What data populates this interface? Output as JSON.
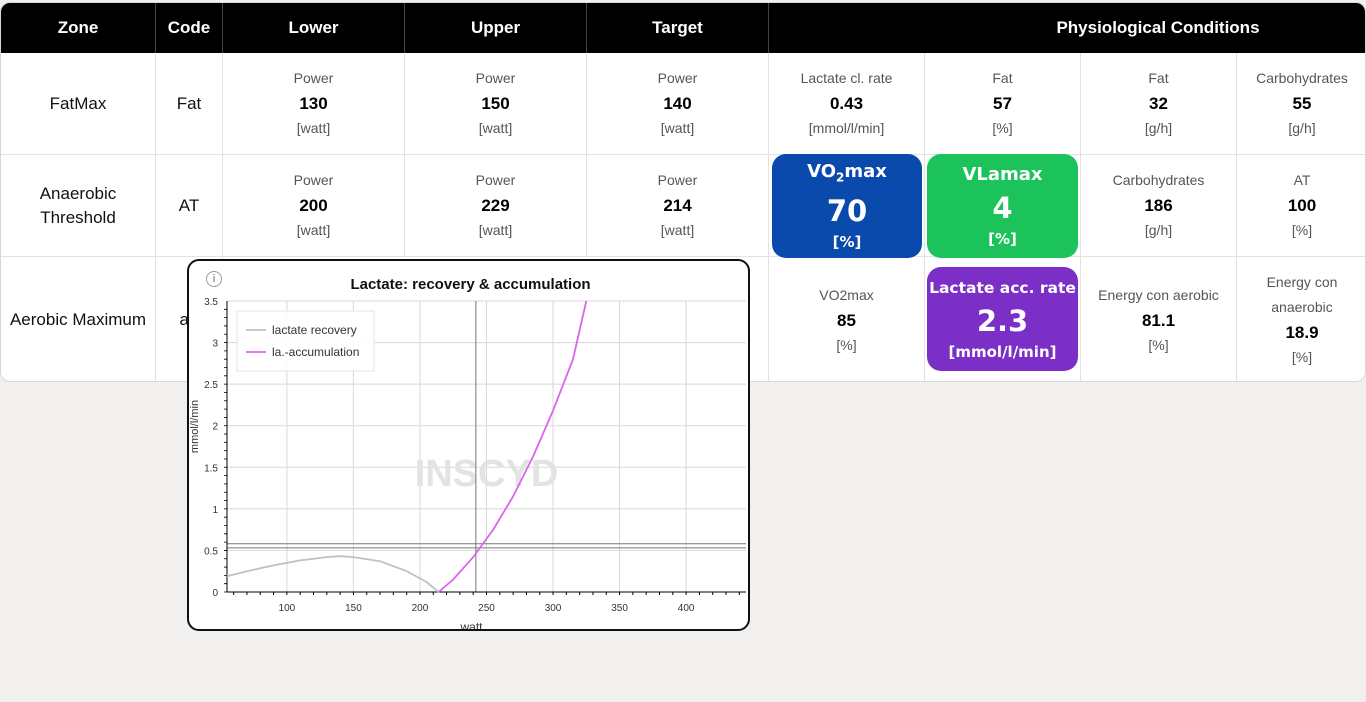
{
  "headers": {
    "zone": "Zone",
    "code": "Code",
    "lower": "Lower",
    "upper": "Upper",
    "target": "Target",
    "conditions": "Physiological Conditions"
  },
  "rows": [
    {
      "zone": "FatMax",
      "code": "Fat",
      "lower": {
        "label": "Power",
        "value": "130",
        "unit": "[watt]"
      },
      "upper": {
        "label": "Power",
        "value": "150",
        "unit": "[watt]"
      },
      "target": {
        "label": "Power",
        "value": "140",
        "unit": "[watt]"
      },
      "c1": {
        "label": "Lactate cl. rate",
        "value": "0.43",
        "unit": "[mmol/l/min]"
      },
      "c2": {
        "label": "Fat",
        "value": "57",
        "unit": "[%]"
      },
      "c3": {
        "label": "Fat",
        "value": "32",
        "unit": "[g/h]"
      },
      "c4": {
        "label": "Carbohydrates",
        "value": "55",
        "unit": "[g/h]"
      }
    },
    {
      "zone_line1": "Anaerobic",
      "zone_line2": "Threshold",
      "code": "AT",
      "lower": {
        "label": "Power",
        "value": "200",
        "unit": "[watt]"
      },
      "upper": {
        "label": "Power",
        "value": "229",
        "unit": "[watt]"
      },
      "target": {
        "label": "Power",
        "value": "214",
        "unit": "[watt]"
      },
      "c1": {
        "title_main": "VO",
        "title_sub": "2",
        "title_rest": "max",
        "value": "70",
        "unit": "[%]",
        "color": "#0a4aad"
      },
      "c2": {
        "title": "VLamax",
        "value": "4",
        "unit": "[%]",
        "color": "#1cc35a"
      },
      "c3": {
        "label": "Carbohydrates",
        "value": "186",
        "unit": "[g/h]"
      },
      "c4": {
        "label": "AT",
        "value": "100",
        "unit": "[%]"
      }
    },
    {
      "zone": "Aerobic Maximum",
      "code": "ae",
      "c1": {
        "label": "VO2max",
        "value": "85",
        "unit": "[%]"
      },
      "c2": {
        "title": "Lactate acc. rate",
        "value": "2.3",
        "unit": "[mmol/l/min]",
        "color": "#7b2fc6"
      },
      "c3": {
        "label": "Energy con aerobic",
        "value": "81.1",
        "unit": "[%]"
      },
      "c4": {
        "label_line1": "Energy con",
        "label_line2": "anaerobic",
        "value": "18.9",
        "unit": "[%]"
      }
    }
  ],
  "popup": {
    "info_glyph": "i",
    "icon": "info-icon"
  },
  "chart_data": {
    "type": "line",
    "title": "Lactate: recovery & accumulation",
    "xlabel": "watt",
    "ylabel": "mmol/l/min",
    "xlim": [
      55,
      445
    ],
    "ylim": [
      0,
      3.5
    ],
    "xticks": [
      100,
      150,
      200,
      250,
      300,
      350,
      400
    ],
    "yticks": [
      0,
      0.5,
      1,
      1.5,
      2,
      2.5,
      3,
      3.5
    ],
    "ref_vline": 242,
    "ref_hlines": [
      0.53,
      0.58
    ],
    "watermark": "INSCYD",
    "legend": "top-left",
    "series": [
      {
        "name": "lactate recovery",
        "color": "#b8c4c8",
        "x": [
          55,
          70,
          90,
          110,
          130,
          140,
          150,
          170,
          190,
          205,
          214
        ],
        "y": [
          0.19,
          0.25,
          0.32,
          0.38,
          0.42,
          0.43,
          0.42,
          0.37,
          0.25,
          0.12,
          0.0
        ]
      },
      {
        "name": "la.-accumulation",
        "color": "#d966ea",
        "x": [
          214,
          225,
          240,
          255,
          270,
          285,
          300,
          315,
          325
        ],
        "y": [
          0.0,
          0.15,
          0.42,
          0.75,
          1.15,
          1.63,
          2.18,
          2.8,
          3.5
        ]
      }
    ]
  }
}
